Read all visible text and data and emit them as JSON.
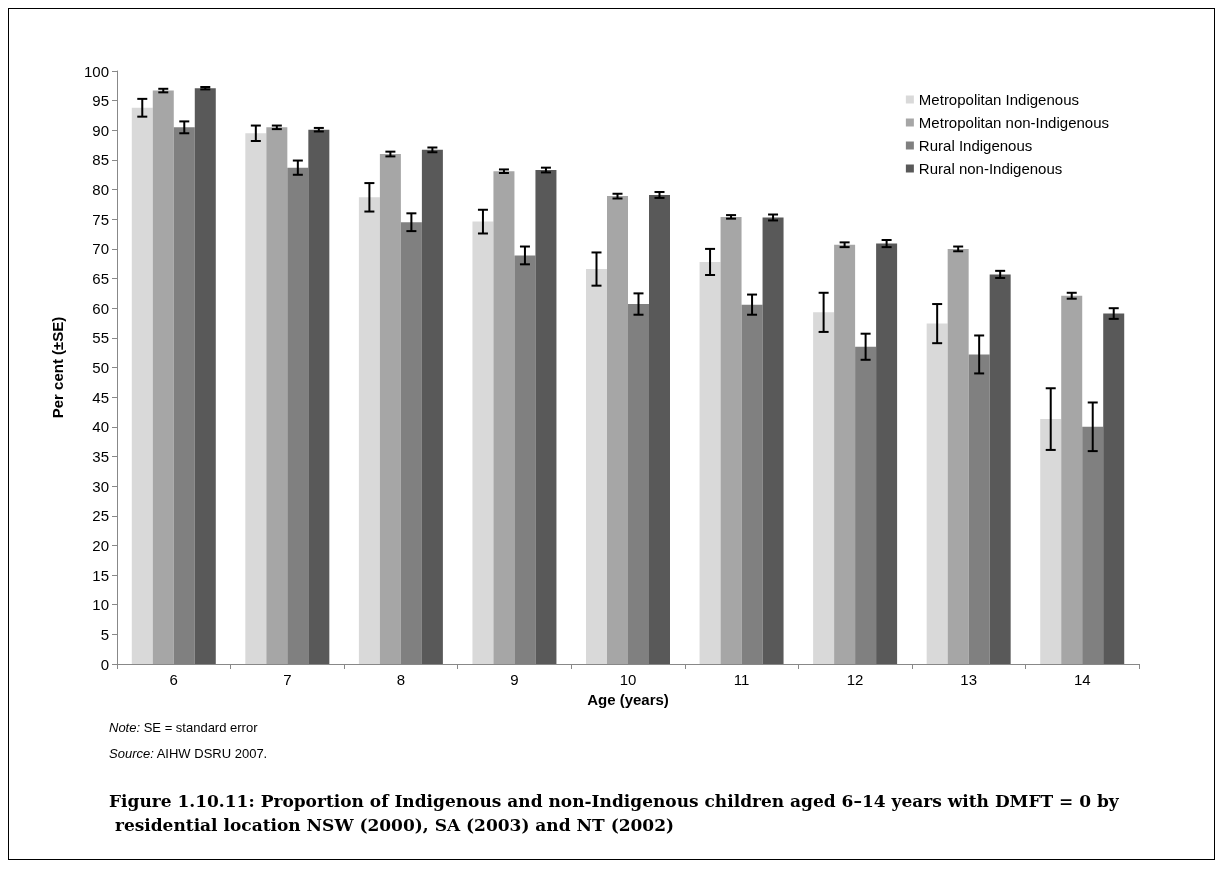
{
  "chart_data": {
    "type": "bar",
    "title": "Figure 1.10.11: Proportion of Indigenous and non-Indigenous children aged 6–14 years with DMFT = 0 by residential location NSW (2000), SA (2003) and NT (2002)",
    "xlabel": "Age (years)",
    "ylabel": "Per cent (±SE)",
    "annotations": [
      "Note: SE = standard error",
      "Source: AIHW DSRU 2007."
    ],
    "categories": [
      "6",
      "7",
      "8",
      "9",
      "10",
      "11",
      "12",
      "13",
      "14"
    ],
    "series": [
      {
        "name": "Metropolitan Indigenous",
        "color": "#d9d9d9",
        "values": [
          93.8,
          89.5,
          78.7,
          74.6,
          66.6,
          67.8,
          59.3,
          57.4,
          41.3
        ],
        "errors": [
          1.5,
          1.3,
          2.4,
          2.0,
          2.8,
          2.2,
          3.3,
          3.3,
          5.2
        ]
      },
      {
        "name": "Metropolitan non-Indigenous",
        "color": "#a6a6a6",
        "values": [
          96.7,
          90.5,
          86.0,
          83.1,
          78.9,
          75.4,
          70.7,
          70.0,
          62.1
        ],
        "errors": [
          0.3,
          0.3,
          0.4,
          0.3,
          0.4,
          0.3,
          0.4,
          0.4,
          0.5
        ]
      },
      {
        "name": "Rural Indigenous",
        "color": "#808080",
        "values": [
          90.5,
          83.7,
          74.5,
          68.9,
          60.7,
          60.6,
          53.5,
          52.2,
          40.0
        ],
        "errors": [
          1.0,
          1.2,
          1.5,
          1.5,
          1.8,
          1.7,
          2.2,
          3.2,
          4.1
        ]
      },
      {
        "name": "Rural non-Indigenous",
        "color": "#595959",
        "values": [
          97.1,
          90.1,
          86.7,
          83.3,
          79.1,
          75.3,
          70.9,
          65.7,
          59.1
        ],
        "errors": [
          0.2,
          0.3,
          0.4,
          0.4,
          0.5,
          0.5,
          0.6,
          0.6,
          0.9
        ]
      }
    ],
    "ylim": [
      0,
      100
    ],
    "yticks": [
      0,
      5,
      10,
      15,
      20,
      25,
      30,
      35,
      40,
      45,
      50,
      55,
      60,
      65,
      70,
      75,
      80,
      85,
      90,
      95,
      100
    ],
    "grid": false,
    "legend": "top right"
  }
}
